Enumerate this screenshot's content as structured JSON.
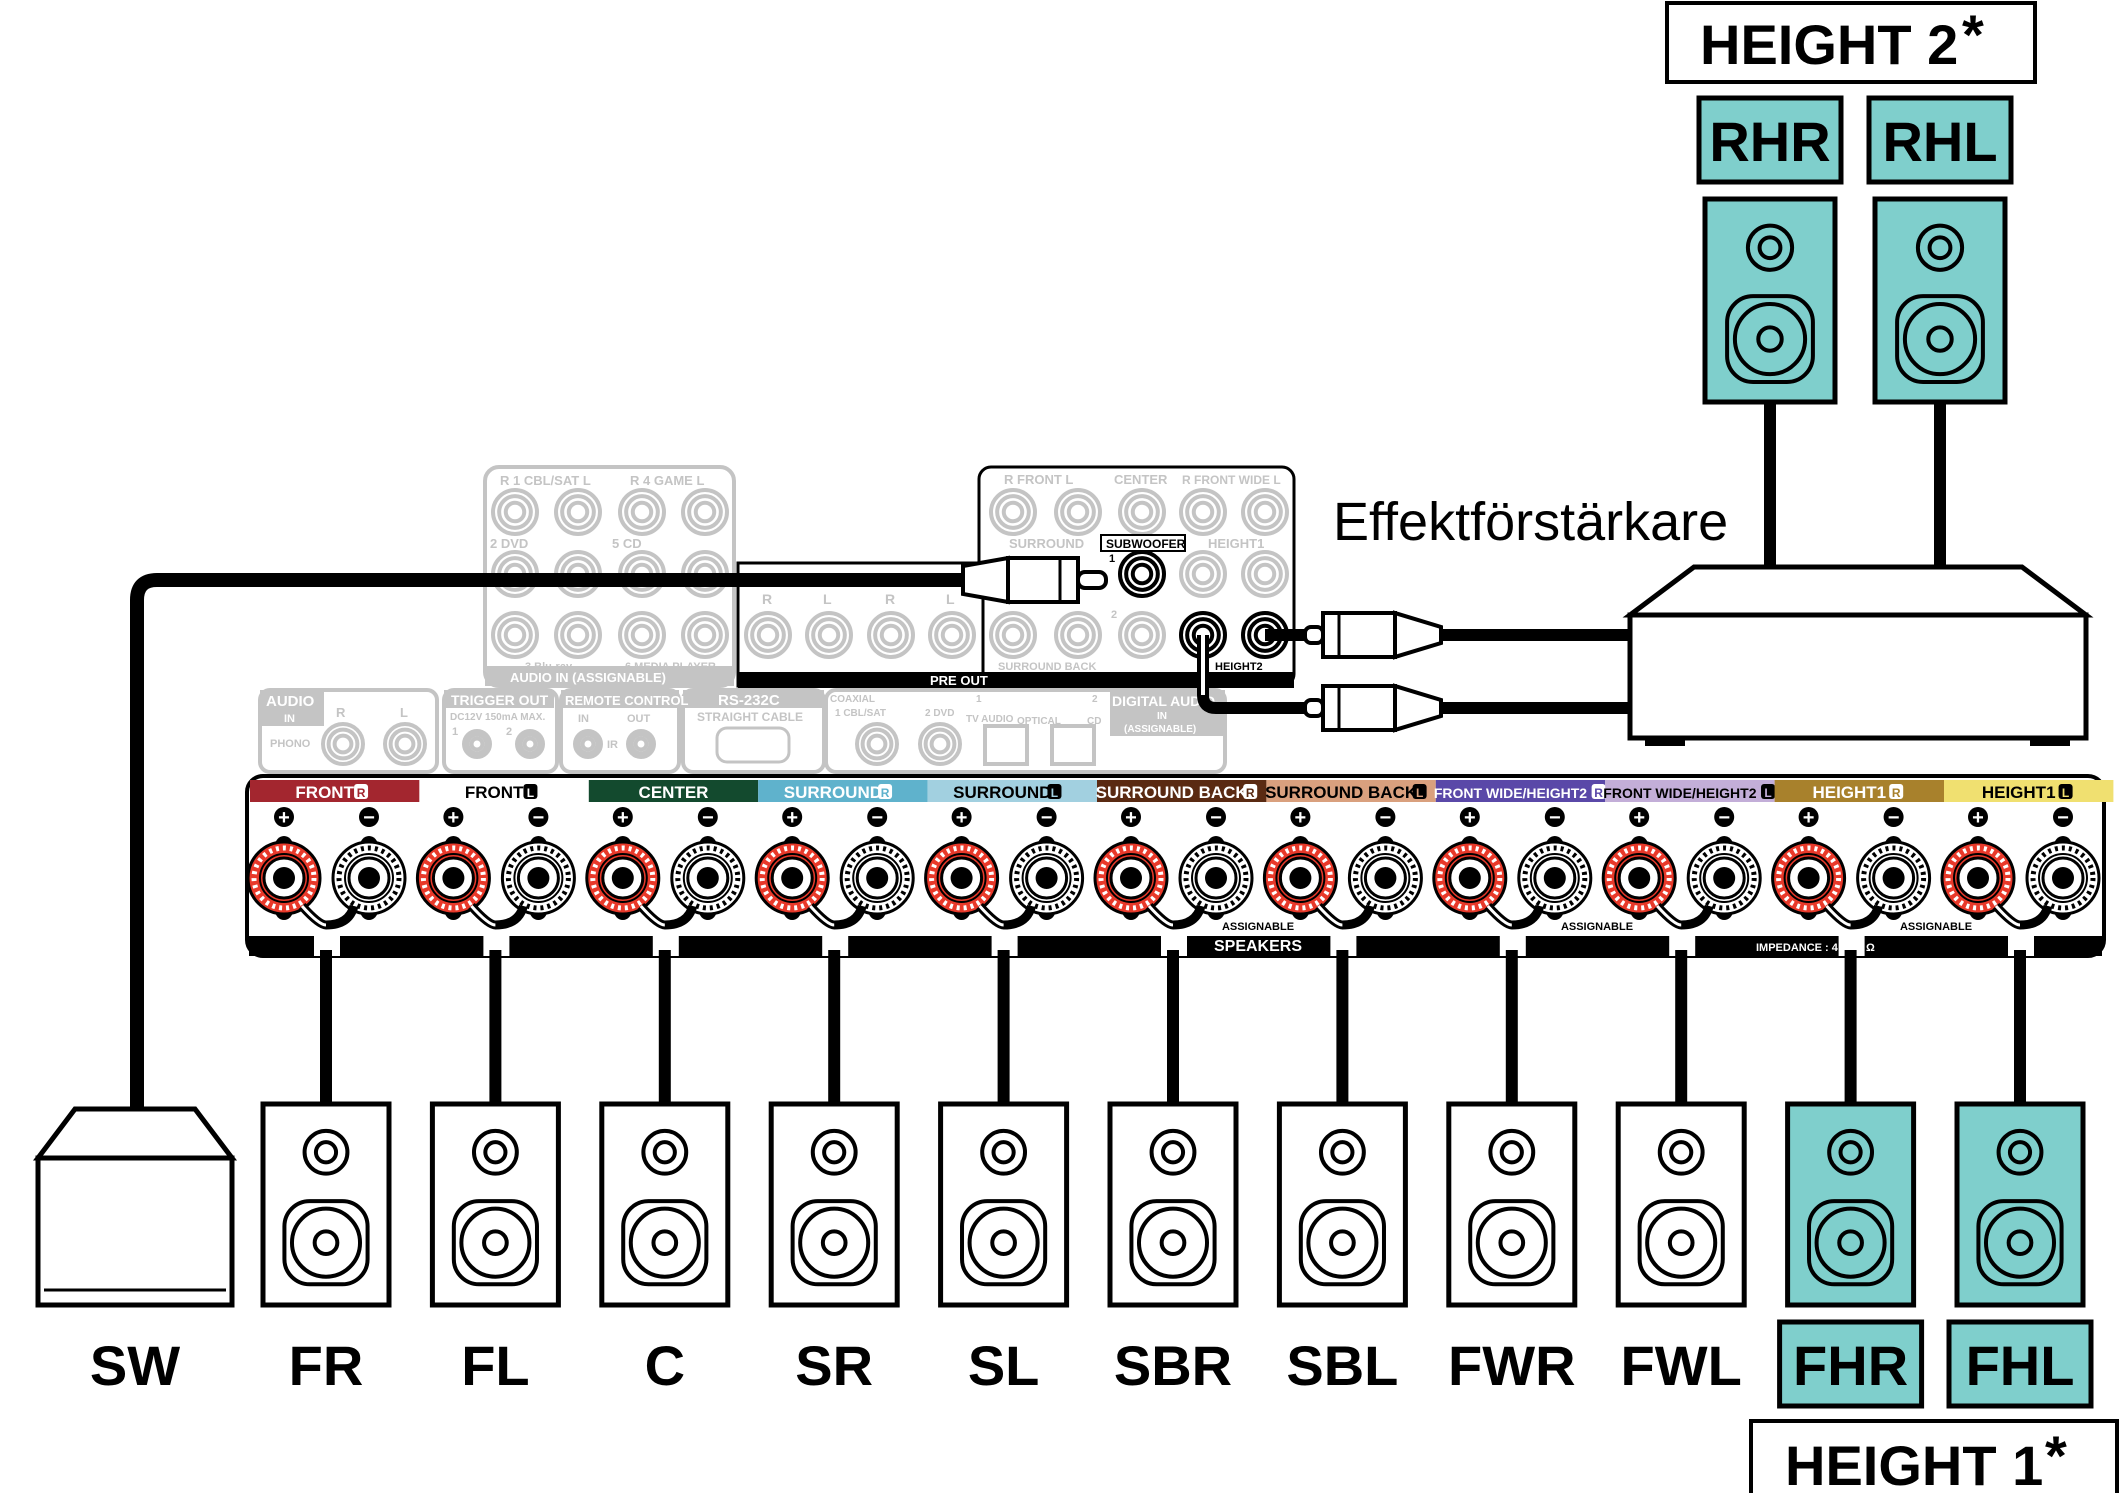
{
  "colors": {
    "speaker_highlight": "#7fcfcc",
    "terminal_plus": "#e8392a",
    "panel_gray": "#c4c4c4"
  },
  "height2": {
    "title": "HEIGHT 2",
    "asterisk": "*",
    "speakers": [
      "RHR",
      "RHL"
    ]
  },
  "height1": {
    "title": "HEIGHT 1",
    "asterisk": "*"
  },
  "amplifier_label": "Effektförstärkare",
  "terminals": [
    {
      "label": "FRONT",
      "side": "R",
      "bg": "#a3262f",
      "fg": "#ffffff"
    },
    {
      "label": "FRONT",
      "side": "L",
      "bg": "#ffffff",
      "fg": "#000000"
    },
    {
      "label": "CENTER",
      "side": "",
      "bg": "#134a2e",
      "fg": "#ffffff"
    },
    {
      "label": "SURROUND",
      "side": "R",
      "bg": "#5fb2cc",
      "fg": "#ffffff"
    },
    {
      "label": "SURROUND",
      "side": "L",
      "bg": "#a2d0e0",
      "fg": "#000000"
    },
    {
      "label": "SURROUND BACK",
      "side": "R",
      "bg": "#5a2a12",
      "fg": "#ffffff"
    },
    {
      "label": "SURROUND BACK",
      "side": "L",
      "bg": "#d9a07e",
      "fg": "#000000"
    },
    {
      "label": "FRONT WIDE/HEIGHT2",
      "side": "R",
      "bg": "#5a48a8",
      "fg": "#ffffff"
    },
    {
      "label": "FRONT WIDE/HEIGHT2",
      "side": "L",
      "bg": "#c3aed8",
      "fg": "#000000"
    },
    {
      "label": "HEIGHT1",
      "side": "R",
      "bg": "#a8812c",
      "fg": "#ffffff"
    },
    {
      "label": "HEIGHT1",
      "side": "L",
      "bg": "#f0e070",
      "fg": "#000000"
    }
  ],
  "terminal_notes": {
    "assignable": "ASSIGNABLE",
    "speakers": "SPEAKERS",
    "impedance": "IMPEDANCE : 4",
    "ohm": "Ω",
    "plus": "+",
    "minus": "−"
  },
  "bottom_speakers": [
    {
      "label": "SW",
      "type": "subwoofer",
      "highlight": false
    },
    {
      "label": "FR",
      "type": "speaker",
      "highlight": false
    },
    {
      "label": "FL",
      "type": "speaker",
      "highlight": false
    },
    {
      "label": "C",
      "type": "speaker",
      "highlight": false
    },
    {
      "label": "SR",
      "type": "speaker",
      "highlight": false
    },
    {
      "label": "SL",
      "type": "speaker",
      "highlight": false
    },
    {
      "label": "SBR",
      "type": "speaker",
      "highlight": false
    },
    {
      "label": "SBL",
      "type": "speaker",
      "highlight": false
    },
    {
      "label": "FWR",
      "type": "speaker",
      "highlight": false
    },
    {
      "label": "FWL",
      "type": "speaker",
      "highlight": false
    },
    {
      "label": "FHR",
      "type": "speaker",
      "highlight": true
    },
    {
      "label": "FHL",
      "type": "speaker",
      "highlight": true
    }
  ],
  "rear_panel": {
    "audio_in": [
      "R 1 CBL/SAT L",
      "R 4 GAME L",
      "2 DVD",
      "5 CD",
      "3 Blu-ray",
      "6 MEDIA PLAYER",
      "AUDIO IN (ASSIGNABLE)"
    ],
    "pre_out": {
      "top_labels": [
        "R FRONT L",
        "CENTER",
        "R FRONT WIDE L"
      ],
      "surround": "SURROUND",
      "subwoofer": "SUBWOOFER",
      "sub1": "1",
      "sub2": "2",
      "height1": "HEIGHT1",
      "surround_back": "SURROUND BACK",
      "height2": "HEIGHT2",
      "rl": [
        "R",
        "L",
        "R",
        "L"
      ],
      "bar": "PRE OUT"
    },
    "lower": {
      "audio_phono": [
        "AUDIO",
        "IN",
        "R",
        "L",
        "PHONO"
      ],
      "trigger": [
        "TRIGGER OUT",
        "DC12V 150mA MAX.",
        "1",
        "2"
      ],
      "remote": [
        "REMOTE CONTROL",
        "IN",
        "OUT",
        "IR"
      ],
      "rs232": [
        "RS-232C",
        "STRAIGHT CABLE"
      ],
      "digital": [
        "COAXIAL",
        "1 CBL/SAT",
        "2 DVD",
        "1",
        "TV AUDIO",
        "OPTICAL",
        "2",
        "CD",
        "DIGITAL AUDIO",
        "IN",
        "(ASSIGNABLE)"
      ]
    }
  }
}
